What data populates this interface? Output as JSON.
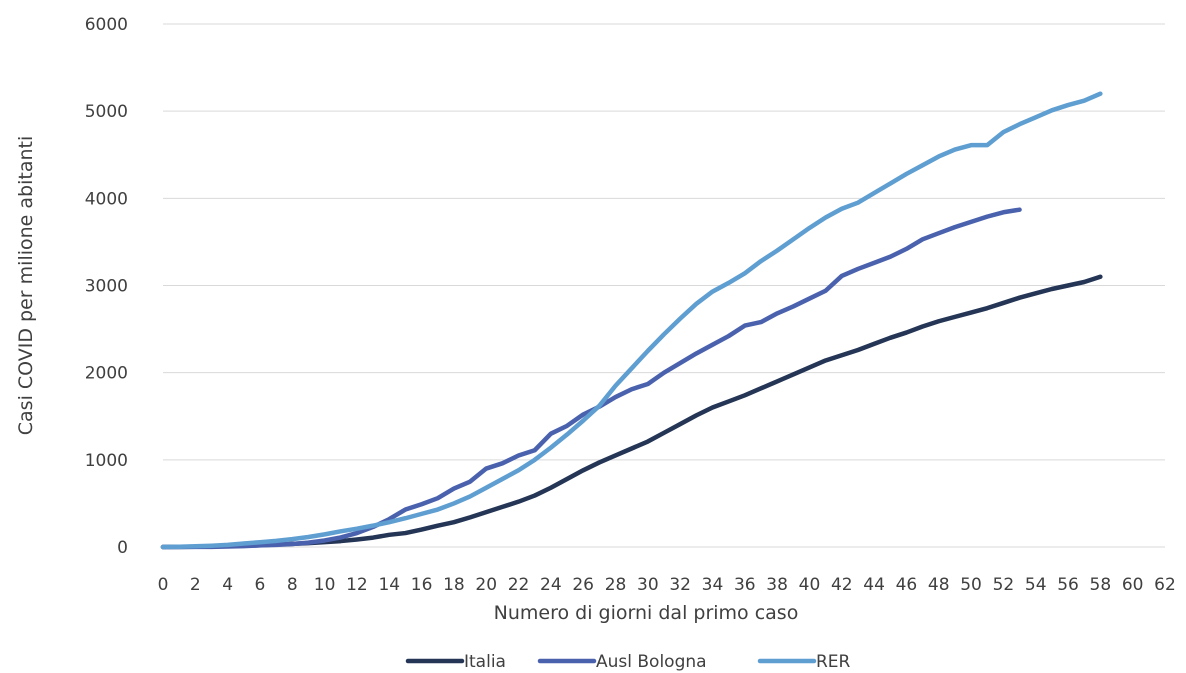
{
  "chart_data": {
    "type": "line",
    "title": "",
    "xlabel": "Numero di giorni dal primo caso",
    "ylabel": "Casi COVID per milione abitanti",
    "xlim": [
      0,
      62
    ],
    "ylim": [
      0,
      6000
    ],
    "x_ticks": [
      0,
      2,
      4,
      6,
      8,
      10,
      12,
      14,
      16,
      18,
      20,
      22,
      24,
      26,
      28,
      30,
      32,
      34,
      36,
      38,
      40,
      42,
      44,
      46,
      48,
      50,
      52,
      54,
      56,
      58,
      60,
      62
    ],
    "y_ticks": [
      0,
      1000,
      2000,
      3000,
      4000,
      5000,
      6000
    ],
    "grid": "horizontal",
    "legend_position": "bottom",
    "series": [
      {
        "name": "Italia",
        "color": "#243556",
        "values": [
          0,
          1,
          3,
          6,
          10,
          15,
          20,
          28,
          36,
          45,
          56,
          68,
          86,
          108,
          140,
          160,
          200,
          245,
          285,
          340,
          400,
          460,
          520,
          590,
          680,
          780,
          880,
          970,
          1050,
          1130,
          1210,
          1310,
          1410,
          1510,
          1600,
          1670,
          1740,
          1820,
          1900,
          1980,
          2060,
          2140,
          2200,
          2260,
          2330,
          2400,
          2460,
          2530,
          2590,
          2640,
          2690,
          2740,
          2800,
          2860,
          2910,
          2960,
          3000,
          3040,
          3100
        ]
      },
      {
        "name": "Ausl Bologna",
        "color": "#4a62ae",
        "values": [
          0,
          0,
          1,
          2,
          5,
          10,
          18,
          25,
          35,
          50,
          75,
          110,
          160,
          230,
          320,
          430,
          490,
          560,
          670,
          750,
          900,
          960,
          1050,
          1110,
          1300,
          1390,
          1520,
          1610,
          1720,
          1810,
          1870,
          2000,
          2110,
          2220,
          2320,
          2420,
          2540,
          2580,
          2680,
          2760,
          2850,
          2940,
          3110,
          3190,
          3260,
          3330,
          3420,
          3530,
          3600,
          3670,
          3730,
          3790,
          3840,
          3870
        ]
      },
      {
        "name": "RER",
        "color": "#5f9ed1",
        "values": [
          0,
          3,
          8,
          15,
          25,
          40,
          55,
          70,
          90,
          115,
          145,
          180,
          210,
          245,
          285,
          330,
          380,
          430,
          500,
          580,
          680,
          780,
          880,
          1000,
          1140,
          1290,
          1450,
          1620,
          1850,
          2050,
          2250,
          2440,
          2620,
          2790,
          2930,
          3030,
          3140,
          3280,
          3400,
          3530,
          3660,
          3780,
          3880,
          3950,
          4060,
          4170,
          4280,
          4380,
          4480,
          4560,
          4610,
          4610,
          4760,
          4850,
          4930,
          5010,
          5070,
          5120,
          5200
        ]
      }
    ]
  }
}
